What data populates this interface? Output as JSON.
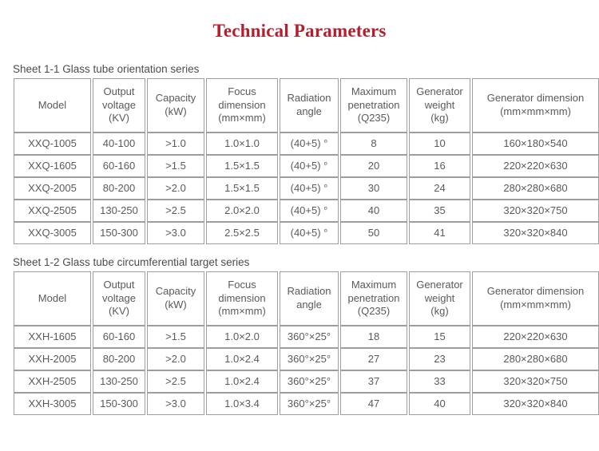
{
  "page": {
    "title": "Technical Parameters"
  },
  "colors": {
    "title": "#b2202e",
    "text": "#5a5a5a",
    "border": "#9e9e9e"
  },
  "tables": [
    {
      "caption": "Sheet 1-1 Glass tube orientation series",
      "headers": [
        "Model",
        "Output\nvoltage\n(KV)",
        "Capacity\n(kW)",
        "Focus\ndimension\n(mm×mm)",
        "Radiation\nangle",
        "Maximum\npenetration\n(Q235)",
        "Generator\nweight\n(kg)",
        "Generator dimension\n(mm×mm×mm)"
      ],
      "rows": [
        [
          "XXQ-1005",
          "40-100",
          ">1.0",
          "1.0×1.0",
          "(40+5) °",
          "8",
          "10",
          "160×180×540"
        ],
        [
          "XXQ-1605",
          "60-160",
          ">1.5",
          "1.5×1.5",
          "(40+5) °",
          "20",
          "16",
          "220×220×630"
        ],
        [
          "XXQ-2005",
          "80-200",
          ">2.0",
          "1.5×1.5",
          "(40+5) °",
          "30",
          "24",
          "280×280×680"
        ],
        [
          "XXQ-2505",
          "130-250",
          ">2.5",
          "2.0×2.0",
          "(40+5) °",
          "40",
          "35",
          "320×320×750"
        ],
        [
          "XXQ-3005",
          "150-300",
          ">3.0",
          "2.5×2.5",
          "(40+5) °",
          "50",
          "41",
          "320×320×840"
        ]
      ]
    },
    {
      "caption": "Sheet 1-2 Glass tube circumferential target series",
      "headers": [
        "Model",
        "Output\nvoltage\n(KV)",
        "Capacity\n(kW)",
        "Focus\ndimension\n(mm×mm)",
        "Radiation\nangle",
        "Maximum\npenetration\n(Q235)",
        "Generator\nweight\n(kg)",
        "Generator dimension\n(mm×mm×mm)"
      ],
      "rows": [
        [
          "XXH-1605",
          "60-160",
          ">1.5",
          "1.0×2.0",
          "360°×25°",
          "18",
          "15",
          "220×220×630"
        ],
        [
          "XXH-2005",
          "80-200",
          ">2.0",
          "1.0×2.4",
          "360°×25°",
          "27",
          "23",
          "280×280×680"
        ],
        [
          "XXH-2505",
          "130-250",
          ">2.5",
          "1.0×2.4",
          "360°×25°",
          "37",
          "33",
          "320×320×750"
        ],
        [
          "XXH-3005",
          "150-300",
          ">3.0",
          "1.0×3.4",
          "360°×25°",
          "47",
          "40",
          "320×320×840"
        ]
      ]
    }
  ]
}
